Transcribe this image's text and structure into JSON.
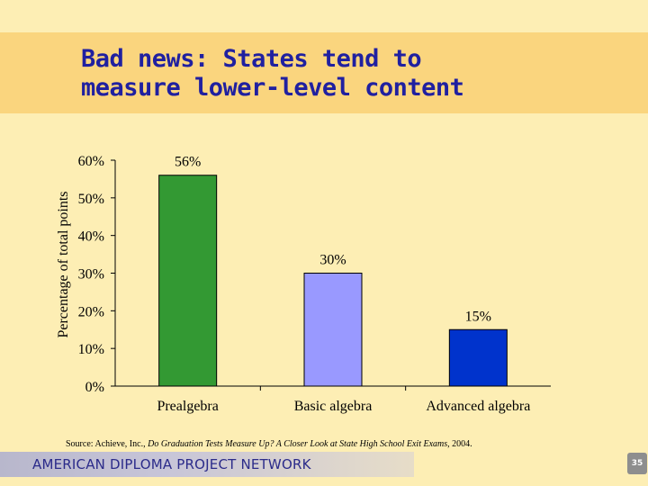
{
  "slide": {
    "title_lines": [
      "Bad news: States tend to",
      "measure lower-level content"
    ],
    "source_prefix": "Source: Achieve, Inc., ",
    "source_italic": "Do Graduation Tests Measure Up? A Closer Look at State High School Exit Exams",
    "source_suffix": ", 2004.",
    "footer": "AMERICAN DIPLOMA PROJECT NETWORK",
    "page_number": "35"
  },
  "colors": {
    "background": "#FDEEB4",
    "title_band": "#FAD57E",
    "title_text": "#2020A0"
  },
  "chart_data": {
    "type": "bar",
    "categories": [
      "Prealgebra",
      "Basic algebra",
      "Advanced algebra"
    ],
    "values": [
      56,
      30,
      15
    ],
    "data_labels": [
      "56%",
      "30%",
      "15%"
    ],
    "bar_colors": [
      "#339933",
      "#9999FF",
      "#0033CC"
    ],
    "ylabel": "Percentage of total points",
    "xlabel": "",
    "ylim": [
      0,
      60
    ],
    "yticks": [
      0,
      10,
      20,
      30,
      40,
      50,
      60
    ],
    "ytick_labels": [
      "0%",
      "10%",
      "20%",
      "30%",
      "40%",
      "50%",
      "60%"
    ],
    "grid": false,
    "legend": false
  }
}
